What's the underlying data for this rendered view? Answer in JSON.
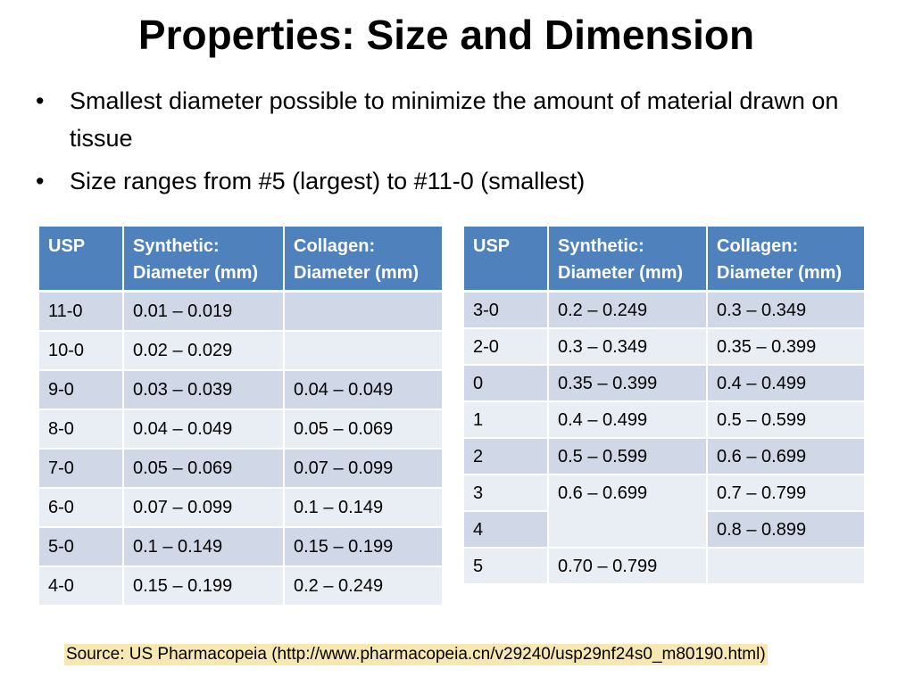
{
  "title": "Properties: Size and Dimension",
  "bullets": [
    "Smallest diameter possible to minimize the amount of material drawn on tissue",
    "Size ranges from #5 (largest) to #11-0 (smallest)"
  ],
  "table_left": {
    "headers": [
      "USP",
      "Synthetic: Diameter (mm)",
      "Collagen: Diameter (mm)"
    ],
    "rows": [
      [
        "11-0",
        "0.01 – 0.019",
        ""
      ],
      [
        "10-0",
        "0.02 – 0.029",
        ""
      ],
      [
        "9-0",
        "0.03 – 0.039",
        "0.04 – 0.049"
      ],
      [
        "8-0",
        "0.04 – 0.049",
        "0.05 – 0.069"
      ],
      [
        "7-0",
        "0.05 – 0.069",
        "0.07 – 0.099"
      ],
      [
        "6-0",
        "0.07 – 0.099",
        "0.1 – 0.149"
      ],
      [
        "5-0",
        "0.1 – 0.149",
        "0.15 – 0.199"
      ],
      [
        "4-0",
        "0.15 – 0.199",
        "0.2 – 0.249"
      ]
    ]
  },
  "table_right": {
    "headers": [
      "USP",
      "Synthetic: Diameter (mm)",
      "Collagen: Diameter (mm)"
    ],
    "rows": [
      [
        "3-0",
        "0.2 – 0.249",
        "0.3 – 0.349"
      ],
      [
        "2-0",
        "0.3 – 0.349",
        "0.35 – 0.399"
      ],
      [
        "0",
        "0.35 – 0.399",
        "0.4 – 0.499"
      ],
      [
        "1",
        "0.4 – 0.499",
        "0.5 – 0.599"
      ],
      [
        "2",
        "0.5 – 0.599",
        "0.6 – 0.699"
      ],
      [
        "3",
        "0.6 – 0.699",
        "0.7 – 0.799"
      ],
      [
        "4",
        "",
        "0.8 – 0.899"
      ],
      [
        "5",
        "0.70 – 0.799",
        ""
      ]
    ]
  },
  "source": "Source: US Pharmacopeia (http://www.pharmacopeia.cn/v29240/usp29nf24s0_m80190.html)",
  "colors": {
    "header_bg": "#4f81bd",
    "row_odd_bg": "#d0d8e8",
    "row_even_bg": "#e9edf4",
    "source_highlight": "#f7e7b0"
  }
}
